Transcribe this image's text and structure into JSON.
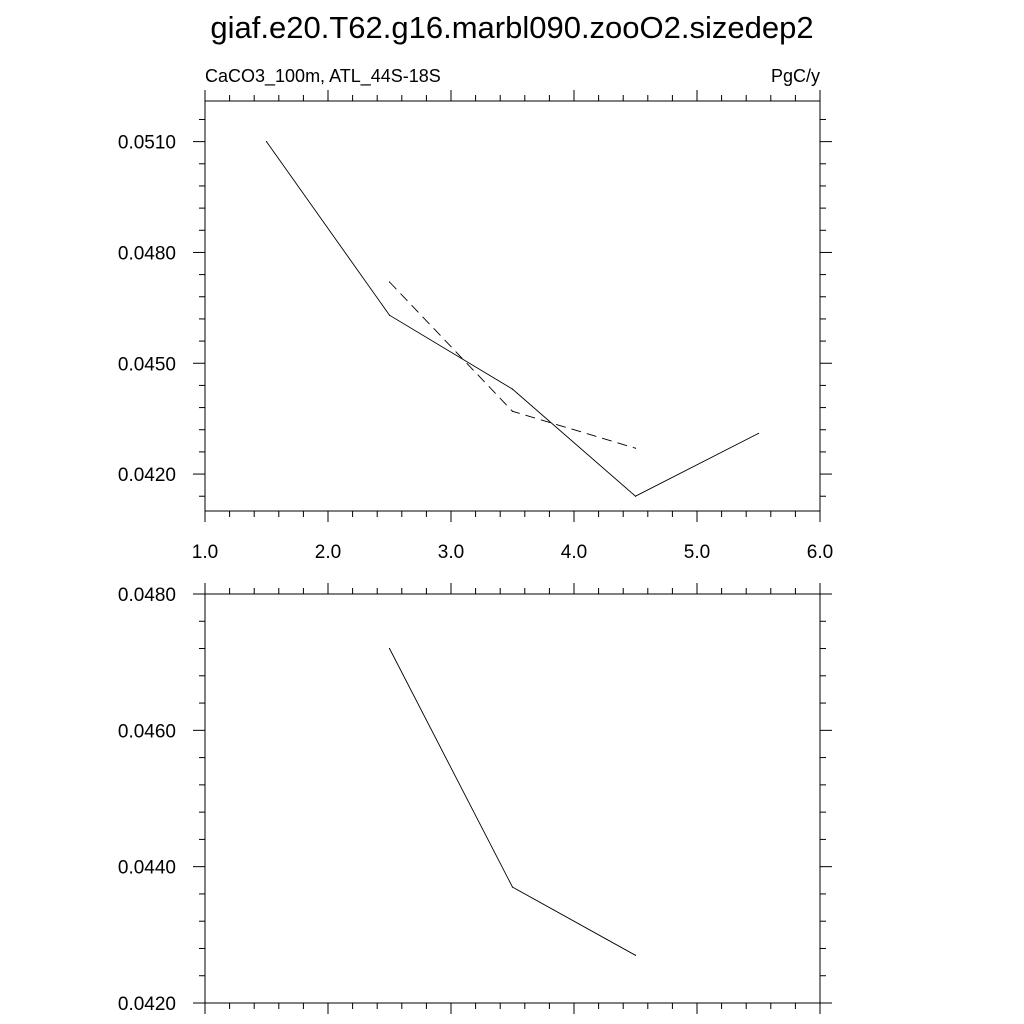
{
  "title": "giaf.e20.T62.g16.marbl090.zooO2.sizedep2",
  "chart_data": [
    {
      "type": "line",
      "left_label": "CaCO3_100m, ATL_44S-18S",
      "right_label": "PgC/y",
      "xlim": [
        1.0,
        6.0
      ],
      "ylim": [
        0.041,
        0.0521
      ],
      "x_ticks": [
        "1.0",
        "2.0",
        "3.0",
        "4.0",
        "5.0",
        "6.0"
      ],
      "y_ticks": [
        "0.0420",
        "0.0450",
        "0.0480",
        "0.0510"
      ],
      "grid": false,
      "series": [
        {
          "style": "solid",
          "x": [
            1.5,
            2.5,
            3.5,
            4.5,
            5.5
          ],
          "y": [
            0.051,
            0.0463,
            0.0443,
            0.0414,
            0.0431
          ]
        },
        {
          "style": "dashed",
          "x": [
            2.5,
            3.5,
            4.5
          ],
          "y": [
            0.0472,
            0.0437,
            0.0427
          ]
        }
      ]
    },
    {
      "type": "line",
      "xlim": [
        1.0,
        6.0
      ],
      "ylim": [
        0.042,
        0.048
      ],
      "y_ticks": [
        "0.0420",
        "0.0440",
        "0.0460",
        "0.0480"
      ],
      "grid": false,
      "series": [
        {
          "style": "solid",
          "x": [
            2.5,
            3.5,
            4.5
          ],
          "y": [
            0.0472,
            0.0437,
            0.0427
          ]
        }
      ]
    }
  ]
}
